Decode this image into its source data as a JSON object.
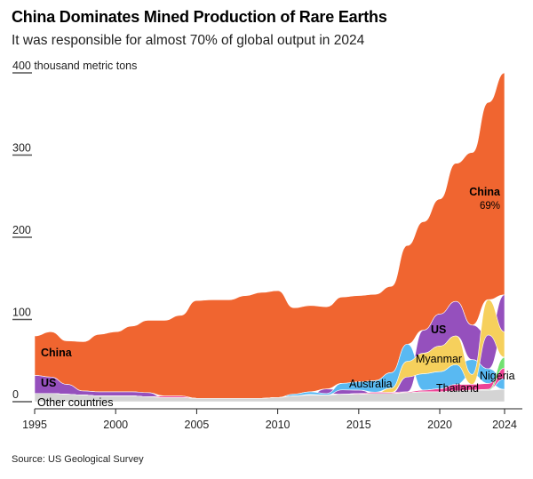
{
  "title": "China Dominates Mined Production of Rare Earths",
  "subtitle": "It was responsible for almost 70% of global output in 2024",
  "source": "Source: US Geological Survey",
  "chart_data": {
    "type": "area",
    "stacking": "ranked (largest producer on top each year)",
    "ylabel": "thousand metric tons",
    "ylim": [
      0,
      400
    ],
    "yticks": [
      0,
      100,
      200,
      300,
      400
    ],
    "yticklabels": [
      "0",
      "100",
      "200",
      "300",
      "400 thousand metric tons"
    ],
    "xlim": [
      1995,
      2024
    ],
    "xticks": [
      1995,
      2000,
      2005,
      2010,
      2015,
      2020,
      2024
    ],
    "x": [
      1995,
      1996,
      1997,
      1998,
      1999,
      2000,
      2001,
      2002,
      2003,
      2004,
      2005,
      2006,
      2007,
      2008,
      2009,
      2010,
      2011,
      2012,
      2013,
      2014,
      2015,
      2016,
      2017,
      2018,
      2019,
      2020,
      2021,
      2022,
      2023,
      2024
    ],
    "series": [
      {
        "name": "Other countries",
        "color": "#d4d4d4",
        "values": [
          10,
          10,
          9,
          8,
          7,
          7,
          7,
          6,
          5,
          5,
          4,
          4,
          4,
          4,
          4,
          5,
          7,
          8,
          8,
          9,
          9,
          10,
          10,
          11,
          12,
          12,
          13,
          14,
          14,
          15
        ]
      },
      {
        "name": "US",
        "color": "#9550bd",
        "values": [
          22,
          20,
          12,
          5,
          5,
          5,
          5,
          5,
          0,
          0,
          0,
          0,
          0,
          0,
          0,
          0,
          0,
          0.8,
          5.5,
          5.4,
          4.1,
          0,
          0,
          18,
          28,
          39,
          42,
          42,
          41,
          45
        ]
      },
      {
        "name": "Australia",
        "color": "#59b9f2",
        "values": [
          0,
          0,
          0,
          0,
          0,
          0,
          0,
          0,
          0,
          0,
          0,
          0,
          0,
          0,
          0,
          0,
          2.2,
          3.2,
          2,
          8,
          10,
          14,
          19,
          21,
          20,
          21,
          24,
          18,
          18,
          13
        ]
      },
      {
        "name": "Myanmar",
        "color": "#f6d05c",
        "values": [
          0,
          0,
          0,
          0,
          0,
          0,
          0,
          0,
          0,
          0,
          0,
          0,
          0,
          0,
          0,
          0,
          0,
          0,
          0,
          0,
          0,
          0,
          5,
          19,
          25,
          31,
          35,
          12,
          43,
          31
        ]
      },
      {
        "name": "Thailand",
        "color": "#ee4396",
        "values": [
          0,
          0,
          0,
          0,
          0,
          0,
          0,
          0,
          2,
          2,
          0,
          0,
          0,
          0,
          0,
          0,
          0,
          0,
          0,
          0,
          1,
          1.6,
          1.3,
          1,
          2,
          3.6,
          8,
          7.1,
          7.1,
          13
        ]
      },
      {
        "name": "Nigeria",
        "color": "#72e070",
        "values": [
          0,
          0,
          0,
          0,
          0,
          0,
          0,
          0,
          0,
          0,
          0,
          0,
          0,
          0,
          0,
          0,
          0,
          0,
          0,
          0,
          0,
          0,
          0,
          0,
          0,
          0,
          0,
          0,
          1,
          13
        ]
      },
      {
        "name": "China",
        "color": "#f06530",
        "values": [
          48,
          55,
          53,
          60,
          70,
          73,
          80,
          88,
          92,
          98,
          119,
          120,
          120,
          125,
          129,
          130,
          105,
          105,
          100,
          105,
          105,
          105,
          105,
          120,
          132,
          140,
          168,
          210,
          240,
          270
        ]
      }
    ],
    "annotations": [
      {
        "text": "China",
        "bold": true
      },
      {
        "text": "US",
        "bold": true
      },
      {
        "text": "Other countries"
      },
      {
        "text": "Australia"
      },
      {
        "text": "US",
        "bold": true
      },
      {
        "text": "Myanmar"
      },
      {
        "text": "Thailand"
      },
      {
        "text": "Nigeria"
      },
      {
        "text": "China",
        "bold": true
      },
      {
        "text": "69%"
      }
    ]
  }
}
